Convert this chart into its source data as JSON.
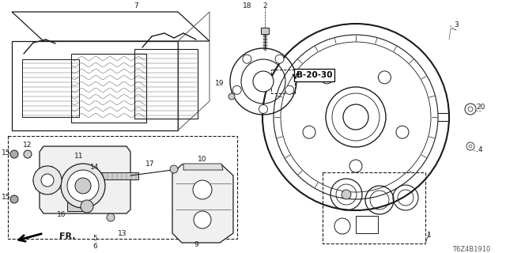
{
  "bg_color": "#ffffff",
  "lc": "#1a1a1a",
  "gc": "#555555",
  "part_number": "T6Z4B1910",
  "b_label": "B-20-30",
  "figsize": [
    6.4,
    3.2
  ],
  "dpi": 100,
  "xlim": [
    0,
    640
  ],
  "ylim": [
    0,
    320
  ]
}
